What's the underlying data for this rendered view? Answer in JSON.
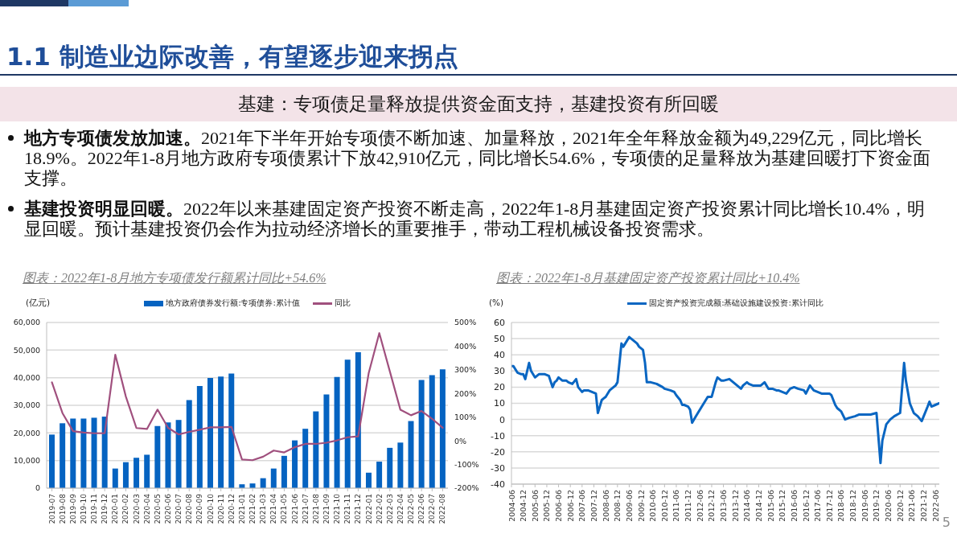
{
  "chart_data": [
    {
      "type": "bar",
      "title": "图表：2022年1-8月地方专项债发行额累计同比+54.6%",
      "ylabel": "(亿元)",
      "annotations": [
        "1.1 制造业边际改善，有望逐步迎来拐点",
        "基建：专项债足量释放提供资金面支持，基建投资有所回暖",
        "地方专项债发放加速。2021年下半年开始专项债不断加速、加量释放，2021年全年释放金额为49,229亿元，同比增长18.9%。2022年1-8月地方政府专项债累计下放42,910亿元，同比增长54.6%，专项债的足量释放为基建回暖打下资金面支撑。",
        "基建投资明显回暖。2022年以来基建固定资产投资不断走高，2022年1-8月基建固定资产投资累计同比增长10.4%，明显回暖。预计基建投资仍会作为拉动经济增长的重要推手，带动工程机械设备投资需求。"
      ],
      "categories": [
        "2019-07",
        "2019-08",
        "2019-09",
        "2019-10",
        "2019-11",
        "2019-12",
        "2020-01",
        "2020-02",
        "2020-03",
        "2020-04",
        "2020-05",
        "2020-06",
        "2020-07",
        "2020-08",
        "2020-09",
        "2020-10",
        "2020-11",
        "2020-12",
        "2021-01",
        "2021-02",
        "2021-03",
        "2021-04",
        "2021-05",
        "2021-06",
        "2021-07",
        "2021-08",
        "2021-09",
        "2021-10",
        "2021-11",
        "2021-12",
        "2022-01",
        "2022-02",
        "2022-03",
        "2022-04",
        "2022-05",
        "2022-06",
        "2022-07",
        "2022-08"
      ],
      "series": [
        {
          "name": "地方政府债券发行额:专项债券:累计值",
          "color": "#0563c1",
          "values": [
            19400,
            23500,
            25200,
            25200,
            25500,
            25900,
            7100,
            9400,
            11000,
            12100,
            22500,
            23800,
            24700,
            31900,
            37000,
            39900,
            40400,
            41500,
            1400,
            1700,
            3600,
            7100,
            11700,
            17300,
            21500,
            27800,
            33900,
            40300,
            46500,
            49200,
            5600,
            9600,
            14600,
            16500,
            24300,
            39200,
            40900,
            43000
          ]
        },
        {
          "name": "同比",
          "type": "line",
          "axis": "y2",
          "color": "#a0507e",
          "values": [
            247,
            117,
            41,
            35,
            32,
            32,
            364,
            187,
            54,
            50,
            132,
            55,
            27,
            38,
            47,
            57,
            57,
            59,
            -79,
            -82,
            -67,
            -41,
            -49,
            -27,
            -13,
            -13,
            -8,
            2,
            15,
            19,
            287,
            455,
            293,
            131,
            108,
            126,
            93,
            55
          ]
        }
      ],
      "ylim": [
        0,
        60000
      ],
      "yticks": [
        0,
        {
          "value": 10000,
          "label": "10,000"
        },
        {
          "value": 20000,
          "label": "20,000"
        },
        {
          "value": 30000,
          "label": "30,000"
        },
        {
          "value": 40000,
          "label": "40,000"
        },
        {
          "value": 50000,
          "label": "50,000"
        },
        {
          "value": 60000,
          "label": "60,000"
        }
      ],
      "y2lim": [
        -200,
        500
      ],
      "y2ticks": [
        {
          "value": -200,
          "label": "-200%"
        },
        {
          "value": -100,
          "label": "-100%"
        },
        {
          "value": 0,
          "label": "0%"
        },
        {
          "value": 100,
          "label": "100%"
        },
        {
          "value": 200,
          "label": "200%"
        },
        {
          "value": 300,
          "label": "300%"
        },
        {
          "value": 400,
          "label": "400%"
        },
        {
          "value": 500,
          "label": "500%"
        }
      ],
      "grid": "y",
      "legend": "top"
    },
    {
      "type": "line",
      "title": "图表：2022年1-8月基建固定资产投资累计同比+10.4%",
      "ylabel": "(%)",
      "annotations": [
        "5"
      ],
      "x": [
        "2004-06",
        "2004-07",
        "2004-09",
        "2004-11",
        "2004-12",
        "2005-01",
        "2005-03",
        "2005-04",
        "2005-06",
        "2005-07",
        "2005-08",
        "2005-10",
        "2005-11",
        "2006-01",
        "2006-03",
        "2006-04",
        "2006-05",
        "2006-06",
        "2006-08",
        "2006-10",
        "2006-11",
        "2007-01",
        "2007-03",
        "2007-04",
        "2007-06",
        "2007-07",
        "2007-09",
        "2007-11",
        "2008-01",
        "2008-02",
        "2008-04",
        "2008-05",
        "2008-06",
        "2008-08",
        "2008-09",
        "2008-10",
        "2008-11",
        "2008-12",
        "2009-02",
        "2009-03",
        "2009-05",
        "2009-06",
        "2009-08",
        "2009-10",
        "2009-11",
        "2010-01",
        "2010-02",
        "2010-03",
        "2010-05",
        "2010-08",
        "2010-11",
        "2010-12",
        "2011-03",
        "2011-05",
        "2011-06",
        "2011-08",
        "2011-09",
        "2011-10",
        "2011-12",
        "2012-01",
        "2012-02",
        "2012-04",
        "2012-05",
        "2012-07",
        "2012-08",
        "2012-10",
        "2012-12",
        "2013-02",
        "2013-03",
        "2013-05",
        "2013-06",
        "2013-09",
        "2013-11",
        "2014-03",
        "2014-04",
        "2014-06",
        "2014-07",
        "2014-09",
        "2014-11",
        "2015-01",
        "2015-03",
        "2015-05",
        "2015-07",
        "2015-09",
        "2015-10",
        "2015-12",
        "2016-02",
        "2016-04",
        "2016-06",
        "2016-08",
        "2016-11",
        "2016-12",
        "2017-02",
        "2017-04",
        "2017-06",
        "2017-08",
        "2017-12",
        "2018-01",
        "2018-03",
        "2018-04",
        "2018-06",
        "2018-08",
        "2018-10",
        "2019-01",
        "2019-03",
        "2019-06",
        "2019-09",
        "2019-12",
        "2020-02",
        "2020-03",
        "2020-05",
        "2020-07",
        "2020-09",
        "2020-12",
        "2021-02",
        "2021-03",
        "2021-05",
        "2021-07",
        "2021-09",
        "2021-11",
        "2022-02",
        "2022-03",
        "2022-04",
        "2022-06",
        "2022-08"
      ],
      "series": [
        {
          "name": "固定资产投资完成额:基础设施建设投资:累计同比",
          "color": "#0a66c2",
          "values": [
            33,
            33,
            29,
            28,
            28,
            25,
            35,
            30,
            26,
            27,
            28,
            28,
            28,
            27,
            20,
            23,
            24,
            26,
            24,
            24,
            23,
            22,
            25,
            20,
            17,
            18,
            18,
            17,
            16,
            4,
            12,
            13,
            14,
            18,
            19,
            20,
            21,
            23,
            47,
            45,
            49,
            51,
            49,
            47,
            45,
            43,
            35,
            23,
            23,
            22,
            20,
            19,
            18,
            17,
            15,
            12,
            9,
            9,
            8,
            6,
            -2,
            2,
            4,
            8,
            10,
            14,
            14,
            23,
            26,
            24,
            24,
            25,
            23,
            19,
            21,
            23,
            22,
            21,
            21,
            21,
            23,
            19,
            19,
            18,
            18,
            17,
            16,
            19,
            20,
            19,
            18,
            16,
            21,
            18,
            17,
            16,
            16,
            15,
            9,
            7,
            5,
            0,
            1,
            2,
            3,
            3,
            3,
            4,
            -27,
            -13,
            -3,
            0,
            2,
            4,
            35,
            24,
            10,
            4,
            2,
            -1,
            8,
            11,
            8,
            9,
            10
          ]
        }
      ],
      "xlim": [
        "2004-06",
        "2022-08"
      ],
      "xticks": [
        "2004-06",
        "2004-12",
        "2005-06",
        "2005-12",
        "2006-06",
        "2006-12",
        "2007-06",
        "2007-12",
        "2008-06",
        "2008-12",
        "2009-06",
        "2009-12",
        "2010-06",
        "2010-12",
        "2011-06",
        "2011-12",
        "2012-06",
        "2012-12",
        "2013-06",
        "2013-12",
        "2014-06",
        "2014-12",
        "2015-06",
        "2015-12",
        "2016-06",
        "2016-12",
        "2017-06",
        "2017-12",
        "2018-06",
        "2018-12",
        "2019-06",
        "2019-12",
        "2020-06",
        "2020-12",
        "2021-06",
        "2021-12",
        "2022-06"
      ],
      "ylim": [
        -40,
        60
      ],
      "yticks": [
        -40,
        -30,
        -20,
        -10,
        0,
        10,
        20,
        30,
        40,
        50,
        60
      ],
      "grid": "y",
      "legend": "top"
    }
  ]
}
